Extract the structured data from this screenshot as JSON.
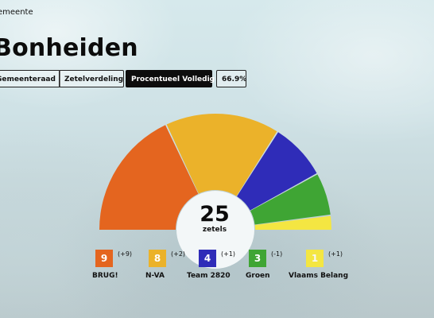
{
  "header": {
    "municipality_label": "emeente",
    "place_name": "Bonheiden"
  },
  "tabs": [
    {
      "label": "Gemeenteraad",
      "active": false
    },
    {
      "label": "Zetelverdeling",
      "active": false
    },
    {
      "label": "Procentueel Volledig",
      "active": true
    },
    {
      "label": "66.9%",
      "active": false
    }
  ],
  "chart_data": {
    "type": "pie",
    "variant": "parliament-semicircle",
    "total": "25",
    "total_label": "zetels",
    "parties": [
      {
        "name": "BRUG!",
        "seats": 9,
        "change": "(+9)",
        "color": "#e4651f"
      },
      {
        "name": "N-VA",
        "seats": 8,
        "change": "(+2)",
        "color": "#ebb22a"
      },
      {
        "name": "Team 2820",
        "seats": 4,
        "change": "(+1)",
        "color": "#2f2cb8"
      },
      {
        "name": "Groen",
        "seats": 3,
        "change": "(-1)",
        "color": "#3fa534"
      },
      {
        "name": "Vlaams Belang",
        "seats": 1,
        "change": "(+1)",
        "color": "#f4e642"
      }
    ]
  }
}
